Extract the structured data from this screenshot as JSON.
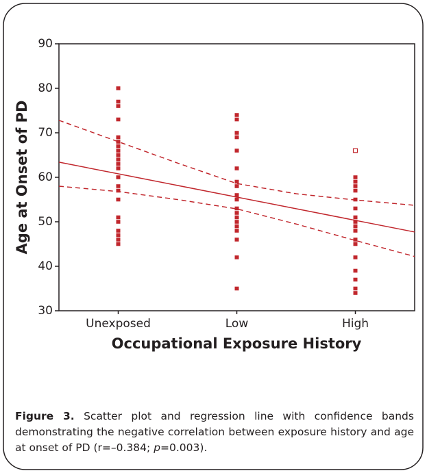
{
  "chart_data": {
    "type": "scatter",
    "xlabel": "Occupational Exposure History",
    "ylabel": "Age at Onset of PD",
    "xlim": [
      -0.5,
      2.5
    ],
    "xticks": [
      {
        "value": 0,
        "label": "Unexposed"
      },
      {
        "value": 1,
        "label": "Low"
      },
      {
        "value": 2,
        "label": "High"
      }
    ],
    "ylim": [
      30,
      90
    ],
    "yticks": [
      30,
      40,
      50,
      60,
      70,
      80,
      90
    ],
    "series": [
      {
        "color": "#c1272d",
        "marker": "filled",
        "x": [
          0,
          0,
          0,
          0,
          0,
          0,
          0,
          0,
          0,
          0,
          0,
          0,
          0,
          0,
          0,
          0,
          0,
          0,
          0,
          0,
          0,
          0
        ],
        "values": [
          80,
          77,
          76,
          73,
          69,
          68,
          67,
          66,
          65,
          64,
          63,
          62,
          60,
          58,
          57,
          55,
          51,
          50,
          48,
          47,
          46,
          45
        ]
      },
      {
        "color": "#c1272d",
        "marker": "filled",
        "x": [
          1,
          1,
          1,
          1,
          1,
          1,
          1,
          1,
          1,
          1,
          1,
          1,
          1,
          1,
          1,
          1,
          1,
          1,
          1
        ],
        "values": [
          74,
          73,
          70,
          69,
          66,
          62,
          59,
          58,
          56,
          55,
          53,
          52,
          51,
          50,
          49,
          48,
          46,
          42,
          35
        ]
      },
      {
        "color": "#c1272d",
        "marker": "filled",
        "x": [
          2,
          2,
          2,
          2,
          2,
          2,
          2,
          2,
          2,
          2,
          2,
          2,
          2,
          2,
          2,
          2,
          2
        ],
        "values": [
          60,
          59,
          58,
          57,
          55,
          53,
          51,
          50,
          49,
          48,
          46,
          45,
          42,
          39,
          37,
          35,
          34
        ]
      },
      {
        "color": "#c1272d",
        "marker": "open",
        "x": [
          2
        ],
        "values": [
          66
        ]
      },
      {
        "color": "#c1272d",
        "mode": "line",
        "dash": false,
        "x": [
          -0.5,
          2.5
        ],
        "values": [
          63.4,
          47.7
        ]
      },
      {
        "color": "#c1272d",
        "mode": "line",
        "dash": true,
        "x": [
          -0.5,
          0,
          0.5,
          1,
          1.5,
          2,
          2.5
        ],
        "values": [
          72.8,
          68.0,
          63.2,
          58.6,
          56.3,
          54.9,
          53.7
        ]
      },
      {
        "color": "#c1272d",
        "mode": "line",
        "dash": true,
        "x": [
          -0.5,
          0,
          0.5,
          1,
          1.5,
          2,
          2.5
        ],
        "values": [
          58.0,
          56.8,
          55.0,
          52.9,
          49.5,
          45.8,
          42.2
        ]
      }
    ],
    "caption_label": "Figure 3.",
    "caption_parts": [
      "Scatter plot and regression line with confidence bands demonstrating the negative correlation between exposure history and age at onset of PD (r=–0.384; ",
      "p",
      "=0.003)."
    ]
  }
}
